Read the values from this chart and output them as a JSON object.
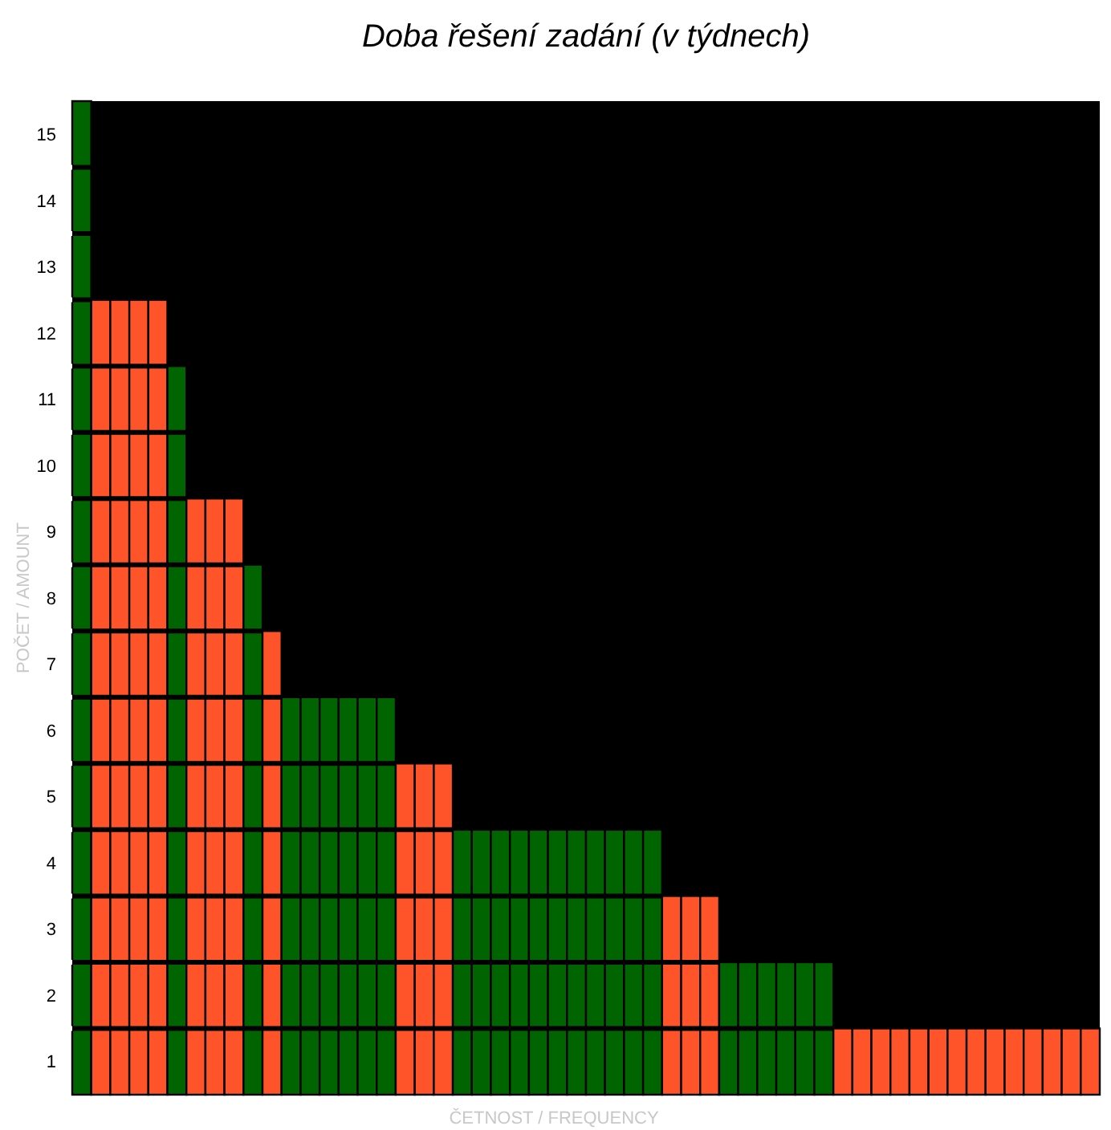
{
  "chart_data": {
    "type": "bar",
    "title": "Doba řešení zadání (v týdnech)",
    "xlabel": "ČETNOST / FREQUENCY",
    "ylabel": "POČET / AMOUNT",
    "categories": [
      null,
      null,
      null,
      null,
      null,
      null,
      null,
      null,
      null,
      null,
      null,
      null,
      null,
      null,
      null,
      null,
      null,
      null,
      null,
      null,
      null,
      null,
      null,
      null,
      null,
      null,
      null,
      null,
      null,
      null,
      null,
      null,
      null,
      null,
      null,
      null,
      null,
      null,
      null,
      null,
      null,
      null,
      null,
      null,
      null,
      null,
      null,
      null,
      null,
      null,
      null,
      null,
      null,
      null
    ],
    "values": [
      15,
      12,
      12,
      12,
      12,
      11,
      9,
      9,
      9,
      8,
      7,
      6,
      6,
      6,
      6,
      6,
      6,
      5,
      5,
      5,
      4,
      4,
      4,
      4,
      4,
      4,
      4,
      4,
      4,
      4,
      4,
      3,
      3,
      3,
      2,
      2,
      2,
      2,
      2,
      2,
      1,
      1,
      1,
      1,
      1,
      1,
      1,
      1,
      1,
      1,
      1,
      1,
      1,
      1
    ],
    "colors": [
      "#006400",
      "#ff5329",
      "#ff5329",
      "#ff5329",
      "#ff5329",
      "#006400",
      "#ff5329",
      "#ff5329",
      "#ff5329",
      "#006400",
      "#ff5329",
      "#006400",
      "#006400",
      "#006400",
      "#006400",
      "#006400",
      "#006400",
      "#ff5329",
      "#ff5329",
      "#ff5329",
      "#006400",
      "#006400",
      "#006400",
      "#006400",
      "#006400",
      "#006400",
      "#006400",
      "#006400",
      "#006400",
      "#006400",
      "#006400",
      "#ff5329",
      "#ff5329",
      "#ff5329",
      "#006400",
      "#006400",
      "#006400",
      "#006400",
      "#006400",
      "#006400",
      "#ff5329",
      "#ff5329",
      "#ff5329",
      "#ff5329",
      "#ff5329",
      "#ff5329",
      "#ff5329",
      "#ff5329",
      "#ff5329",
      "#ff5329",
      "#ff5329",
      "#ff5329",
      "#ff5329",
      "#ff5329"
    ],
    "ylim": [
      0,
      15
    ],
    "yticks": [
      {
        "value": 0.5,
        "label": "1"
      },
      {
        "value": 1.5,
        "label": "2"
      },
      {
        "value": 2.5,
        "label": "3"
      },
      {
        "value": 3.5,
        "label": "4"
      },
      {
        "value": 4.5,
        "label": "5"
      },
      {
        "value": 5.5,
        "label": "6"
      },
      {
        "value": 6.5,
        "label": "7"
      },
      {
        "value": 7.5,
        "label": "8"
      },
      {
        "value": 8.5,
        "label": "9"
      },
      {
        "value": 9.5,
        "label": "10"
      },
      {
        "value": 10.5,
        "label": "11"
      },
      {
        "value": 11.5,
        "label": "12"
      },
      {
        "value": 12.5,
        "label": "13"
      },
      {
        "value": 13.5,
        "label": "14"
      },
      {
        "value": 14.5,
        "label": "15"
      }
    ]
  }
}
